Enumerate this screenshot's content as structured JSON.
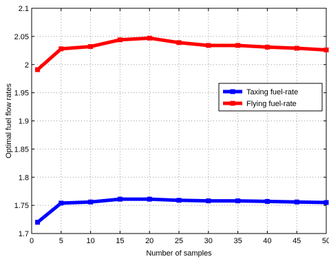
{
  "chart_data": {
    "type": "line",
    "title": "",
    "xlabel": "Number of samples",
    "ylabel": "Optimal fuel flow rates",
    "xlim": [
      0,
      50
    ],
    "ylim": [
      1.7,
      2.1
    ],
    "grid": true,
    "legend_position": "right",
    "x_ticks": [
      "0",
      "5",
      "10",
      "15",
      "20",
      "25",
      "30",
      "35",
      "40",
      "45",
      "50"
    ],
    "y_ticks": [
      "1.7",
      "1.75",
      "1.8",
      "1.85",
      "1.9",
      "1.95",
      "2",
      "2.05",
      "2.1"
    ],
    "x": [
      1,
      5,
      10,
      15,
      20,
      25,
      30,
      35,
      40,
      45,
      50
    ],
    "series": [
      {
        "name": "Taxing fuel-rate",
        "color": "#0000ff",
        "values": [
          1.72,
          1.754,
          1.756,
          1.761,
          1.761,
          1.759,
          1.758,
          1.758,
          1.757,
          1.756,
          1.755
        ]
      },
      {
        "name": "Flying fuel-rate",
        "color": "#ff0000",
        "values": [
          1.991,
          2.028,
          2.032,
          2.044,
          2.047,
          2.039,
          2.034,
          2.034,
          2.031,
          2.029,
          2.026
        ]
      }
    ]
  }
}
